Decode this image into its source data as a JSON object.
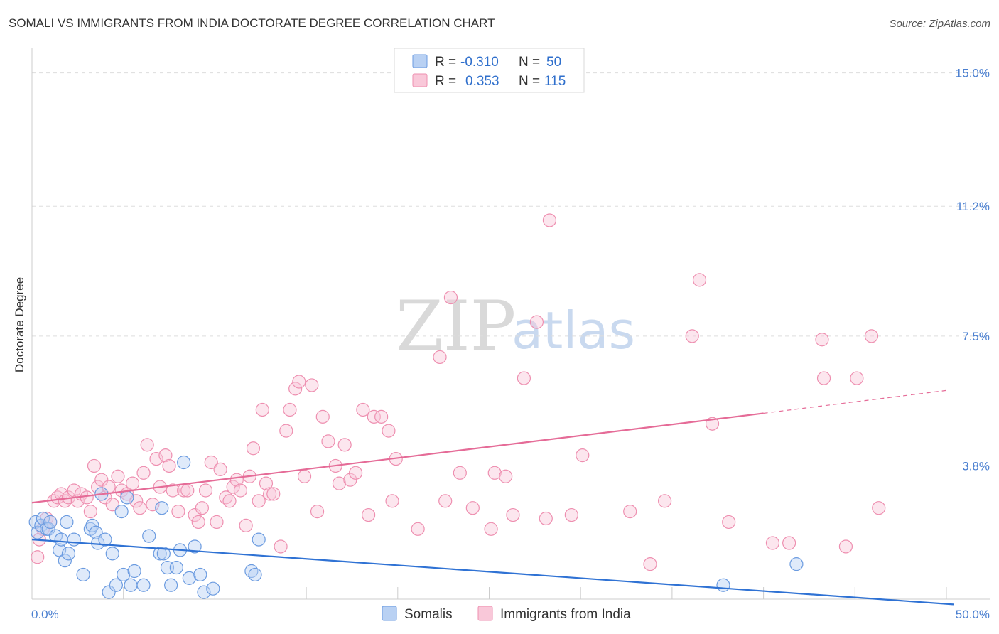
{
  "chart_data": {
    "type": "scatter",
    "title": "SOMALI VS IMMIGRANTS FROM INDIA DOCTORATE DEGREE CORRELATION CHART",
    "source": "Source: ZipAtlas.com",
    "xlabel": "",
    "ylabel": "Doctorate Degree",
    "xlim": [
      0,
      50
    ],
    "ylim": [
      0,
      15.5
    ],
    "x_tick_labels": [
      "0.0%",
      "50.0%"
    ],
    "y_ticks": [
      3.8,
      7.5,
      11.2,
      15.0
    ],
    "y_tick_labels": [
      "3.8%",
      "7.5%",
      "11.2%",
      "15.0%"
    ],
    "grid": true,
    "watermark": {
      "zip": "ZIP",
      "atlas": "atlas"
    },
    "legend": {
      "r_label": "R =",
      "n_label": "N =",
      "entries": [
        {
          "name": "Somalis",
          "r": "-0.310",
          "n": "50",
          "color": "#6b9be0"
        },
        {
          "name": "Immigrants from India",
          "r": "0.353",
          "n": "115",
          "color": "#ee8fb0"
        }
      ]
    },
    "series": [
      {
        "name": "Somalis",
        "color": "#6b9be0",
        "trend": {
          "x0": 0,
          "y0": 1.7,
          "x1": 50,
          "y1": -0.15,
          "dash_from": 50
        },
        "points": [
          [
            0.2,
            2.2
          ],
          [
            0.3,
            1.9
          ],
          [
            0.5,
            2.1
          ],
          [
            0.6,
            2.3
          ],
          [
            0.8,
            2.0
          ],
          [
            0.9,
            2.0
          ],
          [
            1.0,
            2.2
          ],
          [
            1.3,
            1.8
          ],
          [
            1.5,
            1.4
          ],
          [
            1.6,
            1.7
          ],
          [
            1.8,
            1.1
          ],
          [
            1.9,
            2.2
          ],
          [
            2.0,
            1.3
          ],
          [
            2.3,
            1.7
          ],
          [
            2.8,
            0.7
          ],
          [
            3.2,
            2.0
          ],
          [
            3.3,
            2.1
          ],
          [
            3.5,
            1.9
          ],
          [
            3.6,
            1.6
          ],
          [
            3.8,
            3.0
          ],
          [
            4.0,
            1.7
          ],
          [
            4.2,
            0.2
          ],
          [
            4.4,
            1.3
          ],
          [
            4.6,
            0.4
          ],
          [
            4.9,
            2.5
          ],
          [
            5.0,
            0.7
          ],
          [
            5.2,
            2.9
          ],
          [
            5.4,
            0.4
          ],
          [
            5.6,
            0.8
          ],
          [
            6.1,
            0.4
          ],
          [
            6.4,
            1.8
          ],
          [
            7.0,
            1.3
          ],
          [
            7.1,
            2.6
          ],
          [
            7.2,
            1.3
          ],
          [
            7.4,
            0.9
          ],
          [
            7.6,
            0.4
          ],
          [
            7.9,
            0.9
          ],
          [
            8.1,
            1.4
          ],
          [
            8.3,
            3.9
          ],
          [
            8.6,
            0.6
          ],
          [
            8.9,
            1.5
          ],
          [
            9.2,
            0.7
          ],
          [
            9.4,
            0.2
          ],
          [
            9.9,
            0.3
          ],
          [
            12.0,
            0.8
          ],
          [
            12.2,
            0.7
          ],
          [
            12.4,
            1.7
          ],
          [
            37.8,
            0.4
          ],
          [
            41.8,
            1.0
          ]
        ]
      },
      {
        "name": "Immigrants from India",
        "color": "#ee8fb0",
        "trend": {
          "x0": 0,
          "y0": 2.75,
          "x1": 40,
          "y1": 5.3,
          "dash_to": 50,
          "dash_y": 5.95
        },
        "points": [
          [
            0.3,
            1.2
          ],
          [
            0.4,
            1.7
          ],
          [
            0.6,
            2.0
          ],
          [
            0.8,
            2.3
          ],
          [
            1.0,
            2.2
          ],
          [
            1.2,
            2.8
          ],
          [
            1.4,
            2.9
          ],
          [
            1.6,
            3.0
          ],
          [
            1.8,
            2.8
          ],
          [
            2.0,
            2.9
          ],
          [
            2.3,
            3.1
          ],
          [
            2.5,
            2.8
          ],
          [
            2.7,
            3.0
          ],
          [
            3.0,
            2.9
          ],
          [
            3.2,
            2.5
          ],
          [
            3.4,
            3.8
          ],
          [
            3.6,
            3.2
          ],
          [
            3.8,
            3.4
          ],
          [
            4.0,
            2.9
          ],
          [
            4.2,
            3.2
          ],
          [
            4.4,
            2.7
          ],
          [
            4.7,
            3.5
          ],
          [
            4.9,
            3.1
          ],
          [
            5.2,
            3.0
          ],
          [
            5.5,
            3.3
          ],
          [
            5.7,
            2.8
          ],
          [
            5.9,
            2.6
          ],
          [
            6.1,
            3.6
          ],
          [
            6.3,
            4.4
          ],
          [
            6.6,
            2.7
          ],
          [
            6.8,
            4.0
          ],
          [
            7.0,
            3.2
          ],
          [
            7.3,
            4.1
          ],
          [
            7.5,
            3.8
          ],
          [
            7.7,
            3.1
          ],
          [
            8.0,
            2.5
          ],
          [
            8.3,
            3.1
          ],
          [
            8.5,
            3.1
          ],
          [
            8.9,
            2.4
          ],
          [
            9.1,
            2.2
          ],
          [
            9.3,
            2.6
          ],
          [
            9.5,
            3.1
          ],
          [
            9.8,
            3.9
          ],
          [
            10.1,
            2.2
          ],
          [
            10.3,
            3.7
          ],
          [
            10.6,
            2.9
          ],
          [
            10.8,
            2.8
          ],
          [
            11.0,
            3.2
          ],
          [
            11.2,
            3.4
          ],
          [
            11.4,
            3.1
          ],
          [
            11.7,
            2.1
          ],
          [
            11.9,
            3.5
          ],
          [
            12.1,
            4.3
          ],
          [
            12.4,
            2.8
          ],
          [
            12.6,
            5.4
          ],
          [
            12.8,
            3.3
          ],
          [
            13.0,
            3.0
          ],
          [
            13.2,
            3.0
          ],
          [
            13.6,
            1.5
          ],
          [
            13.9,
            4.8
          ],
          [
            14.1,
            5.4
          ],
          [
            14.4,
            6.0
          ],
          [
            14.6,
            6.2
          ],
          [
            14.9,
            3.5
          ],
          [
            15.3,
            6.1
          ],
          [
            15.6,
            2.5
          ],
          [
            15.9,
            5.2
          ],
          [
            16.2,
            4.5
          ],
          [
            16.6,
            3.8
          ],
          [
            16.8,
            3.3
          ],
          [
            17.1,
            4.4
          ],
          [
            17.4,
            3.4
          ],
          [
            17.7,
            3.6
          ],
          [
            18.1,
            5.4
          ],
          [
            18.4,
            2.4
          ],
          [
            18.7,
            5.2
          ],
          [
            19.1,
            5.2
          ],
          [
            19.5,
            4.8
          ],
          [
            19.7,
            2.8
          ],
          [
            19.9,
            4.0
          ],
          [
            21.1,
            2.0
          ],
          [
            22.3,
            6.9
          ],
          [
            22.6,
            2.8
          ],
          [
            22.9,
            8.6
          ],
          [
            23.4,
            3.6
          ],
          [
            24.1,
            2.6
          ],
          [
            25.1,
            2.0
          ],
          [
            25.3,
            3.6
          ],
          [
            25.9,
            3.5
          ],
          [
            26.3,
            2.4
          ],
          [
            26.9,
            6.3
          ],
          [
            27.6,
            7.9
          ],
          [
            28.1,
            2.3
          ],
          [
            28.3,
            10.8
          ],
          [
            29.5,
            2.4
          ],
          [
            30.1,
            4.1
          ],
          [
            32.7,
            2.5
          ],
          [
            33.8,
            1.0
          ],
          [
            34.6,
            2.8
          ],
          [
            36.1,
            7.5
          ],
          [
            36.5,
            9.1
          ],
          [
            37.2,
            5.0
          ],
          [
            38.1,
            2.2
          ],
          [
            40.5,
            1.6
          ],
          [
            41.4,
            1.6
          ],
          [
            43.2,
            7.4
          ],
          [
            43.3,
            6.3
          ],
          [
            44.5,
            1.5
          ],
          [
            45.1,
            6.3
          ],
          [
            45.9,
            7.5
          ],
          [
            46.3,
            2.6
          ]
        ]
      }
    ]
  }
}
